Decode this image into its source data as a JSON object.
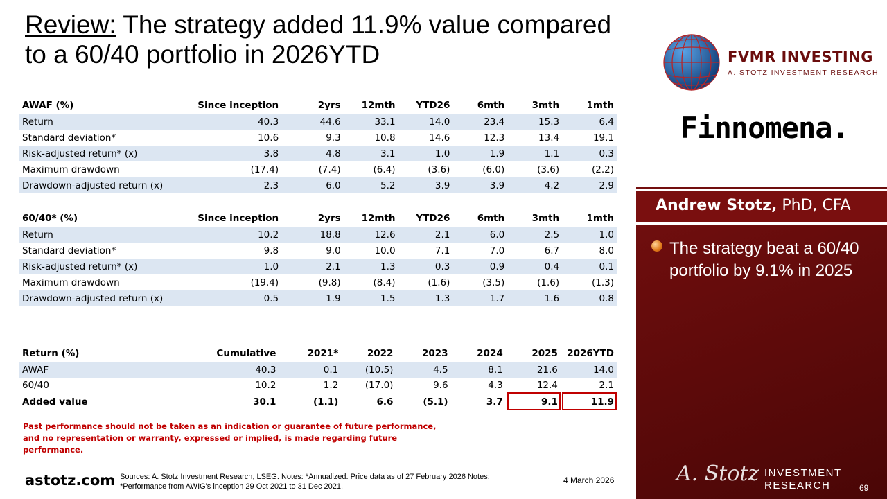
{
  "title": {
    "keyword": "Review:",
    "rest": " The strategy added 11.9% value compared to a 60/40 portfolio in 2026YTD"
  },
  "awaf_table": {
    "headers": [
      "AWAF (%)",
      "Since inception",
      "2yrs",
      "12mth",
      "YTD26",
      "6mth",
      "3mth",
      "1mth"
    ],
    "rows": [
      [
        "Return",
        "40.3",
        "44.6",
        "33.1",
        "14.0",
        "23.4",
        "15.3",
        "6.4"
      ],
      [
        "Standard deviation*",
        "10.6",
        "9.3",
        "10.8",
        "14.6",
        "12.3",
        "13.4",
        "19.1"
      ],
      [
        "Risk-adjusted return* (x)",
        "3.8",
        "4.8",
        "3.1",
        "1.0",
        "1.9",
        "1.1",
        "0.3"
      ],
      [
        "Maximum drawdown",
        "(17.4)",
        "(7.4)",
        "(6.4)",
        "(3.6)",
        "(6.0)",
        "(3.6)",
        "(2.2)"
      ],
      [
        "Drawdown-adjusted return (x)",
        "2.3",
        "6.0",
        "5.2",
        "3.9",
        "3.9",
        "4.2",
        "2.9"
      ]
    ]
  },
  "sixty_forty_table": {
    "headers": [
      "60/40* (%)",
      "Since inception",
      "2yrs",
      "12mth",
      "YTD26",
      "6mth",
      "3mth",
      "1mth"
    ],
    "rows": [
      [
        "Return",
        "10.2",
        "18.8",
        "12.6",
        "2.1",
        "6.0",
        "2.5",
        "1.0"
      ],
      [
        "Standard deviation*",
        "9.8",
        "9.0",
        "10.0",
        "7.1",
        "7.0",
        "6.7",
        "8.0"
      ],
      [
        "Risk-adjusted return* (x)",
        "1.0",
        "2.1",
        "1.3",
        "0.3",
        "0.9",
        "0.4",
        "0.1"
      ],
      [
        "Maximum drawdown",
        "(19.4)",
        "(9.8)",
        "(8.4)",
        "(1.6)",
        "(3.5)",
        "(1.6)",
        "(1.3)"
      ],
      [
        "Drawdown-adjusted return (x)",
        "0.5",
        "1.9",
        "1.5",
        "1.3",
        "1.7",
        "1.6",
        "0.8"
      ]
    ]
  },
  "return_table": {
    "headers": [
      "Return (%)",
      "Cumulative",
      "2021*",
      "2022",
      "2023",
      "2024",
      "2025",
      "2026YTD"
    ],
    "rows": [
      [
        "AWAF",
        "40.3",
        "0.1",
        "(10.5)",
        "4.5",
        "8.1",
        "21.6",
        "14.0"
      ],
      [
        "60/40",
        "10.2",
        "1.2",
        "(17.0)",
        "9.6",
        "4.3",
        "12.4",
        "2.1"
      ],
      [
        "Added value",
        "30.1",
        "(1.1)",
        "6.6",
        "(5.1)",
        "3.7",
        "9.1",
        "11.9"
      ]
    ]
  },
  "disclaimer": "Past performance should not be taken as an indication or guarantee of future performance, and no representation or warranty, expressed or implied, is made regarding future performance.",
  "footer": {
    "site": "astotz.com",
    "sources": "Sources: A. Stotz Investment Research, LSEG. Notes: *Annualized. Price data as of 27 February 2026 Notes: *Performance from AWIG's inception 29 Oct 2021 to 31 Dec 2021.",
    "date": "4 March 2026",
    "page": "69"
  },
  "panel": {
    "fvmr_title": "FVMR INVESTING",
    "fvmr_sub": "A. STOTZ INVESTMENT RESEARCH",
    "finnomena": "Finnomena.",
    "name_bold": "Andrew Stotz,",
    "name_rest": " PhD, CFA",
    "bullet": "The strategy beat a 60/40 portfolio by 9.1% in 2025",
    "signature": "A. Stotz",
    "logo_line1": "INVESTMENT",
    "logo_line2": "RESEARCH"
  },
  "colors": {
    "accent_red": "#c00000",
    "panel_red": "#7a0f0f",
    "row_shade": "#dce6f2"
  }
}
